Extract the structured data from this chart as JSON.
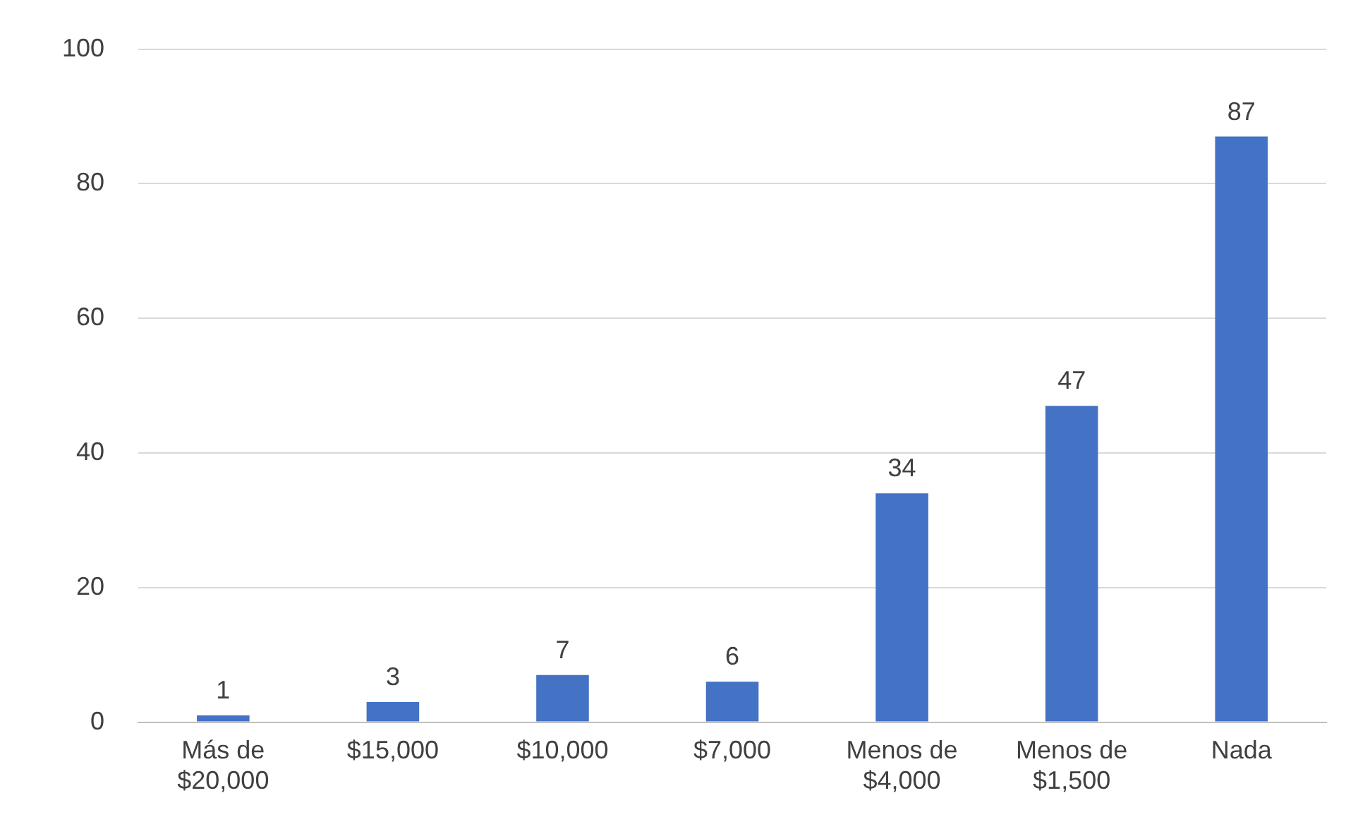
{
  "chart_data": {
    "type": "bar",
    "categories": [
      "Más de $20,000",
      "$15,000",
      "$10,000",
      "$7,000",
      "Menos de $4,000",
      "Menos de $1,500",
      "Nada"
    ],
    "values": [
      1,
      3,
      7,
      6,
      34,
      47,
      87
    ],
    "color": "#4472c4",
    "ylim": [
      0,
      100
    ],
    "yticks": [
      0,
      20,
      40,
      60,
      80,
      100
    ],
    "grid": "y",
    "data_labels": true,
    "legend": false
  }
}
